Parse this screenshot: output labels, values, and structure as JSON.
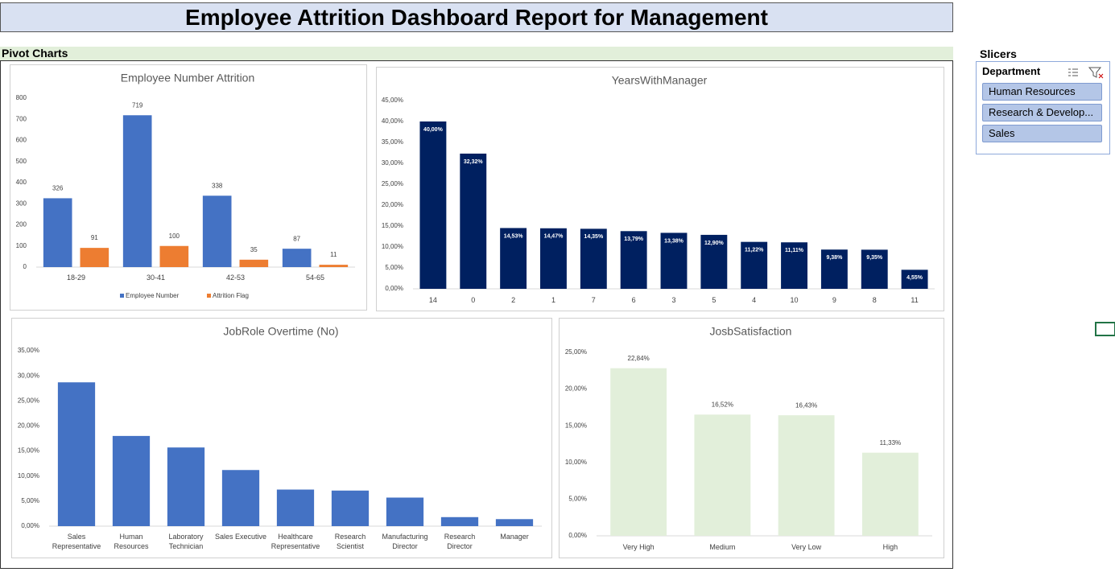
{
  "title": "Employee Attrition Dashboard Report for Management",
  "section_label": "Pivot Charts",
  "slicers": {
    "title": "Slicers",
    "header": "Department",
    "items": [
      "Human Resources",
      "Research & Develop...",
      "Sales"
    ]
  },
  "chart_data": [
    {
      "type": "bar",
      "title": "Employee Number Attrition",
      "categories": [
        "18-29",
        "30-41",
        "42-53",
        "54-65"
      ],
      "series": [
        {
          "name": "Employee Number",
          "color": "#4472c4",
          "values": [
            326,
            719,
            338,
            87
          ]
        },
        {
          "name": "Attrition Flag",
          "color": "#ed7d31",
          "values": [
            91,
            100,
            35,
            11
          ]
        }
      ],
      "ylim": [
        0,
        800
      ],
      "yticks": [
        0,
        100,
        200,
        300,
        400,
        500,
        600,
        700,
        800
      ],
      "grid": false,
      "legend": "bottom",
      "data_labels": "outside"
    },
    {
      "type": "bar",
      "title": "YearsWithManager",
      "categories": [
        "14",
        "0",
        "2",
        "1",
        "7",
        "6",
        "3",
        "5",
        "4",
        "10",
        "9",
        "8",
        "11"
      ],
      "values": [
        40.0,
        32.32,
        14.53,
        14.47,
        14.35,
        13.79,
        13.38,
        12.9,
        11.22,
        11.11,
        9.38,
        9.35,
        4.55
      ],
      "value_labels": [
        "40,00%",
        "32,32%",
        "14,53%",
        "14,47%",
        "14,35%",
        "13,79%",
        "13,38%",
        "12,90%",
        "11,22%",
        "11,11%",
        "9,38%",
        "9,35%",
        "4,55%"
      ],
      "color": "#002060",
      "ylim": [
        0,
        45
      ],
      "yticks": [
        {
          "value": 0,
          "label": "0,00%"
        },
        {
          "value": 5,
          "label": "5,00%"
        },
        {
          "value": 10,
          "label": "10,00%"
        },
        {
          "value": 15,
          "label": "15,00%"
        },
        {
          "value": 20,
          "label": "20,00%"
        },
        {
          "value": 25,
          "label": "25,00%"
        },
        {
          "value": 30,
          "label": "30,00%"
        },
        {
          "value": 35,
          "label": "35,00%"
        },
        {
          "value": 40,
          "label": "40,00%"
        },
        {
          "value": 45,
          "label": "45,00%"
        }
      ],
      "grid": false,
      "data_labels": "inside"
    },
    {
      "type": "bar",
      "title": "JobRole Overtime (No)",
      "categories": [
        "Sales Representative",
        "Human Resources",
        "Laboratory Technician",
        "Sales Executive",
        "Healthcare Representative",
        "Research Scientist",
        "Manufacturing Director",
        "Research Director",
        "Manager"
      ],
      "values": [
        28.7,
        18.0,
        15.7,
        11.2,
        7.3,
        7.1,
        5.7,
        1.8,
        1.4
      ],
      "color": "#4472c4",
      "ylim": [
        0,
        35
      ],
      "yticks": [
        {
          "value": 0,
          "label": "0,00%"
        },
        {
          "value": 5,
          "label": "5,00%"
        },
        {
          "value": 10,
          "label": "10,00%"
        },
        {
          "value": 15,
          "label": "15,00%"
        },
        {
          "value": 20,
          "label": "20,00%"
        },
        {
          "value": 25,
          "label": "25,00%"
        },
        {
          "value": 30,
          "label": "30,00%"
        },
        {
          "value": 35,
          "label": "35,00%"
        }
      ],
      "grid": false
    },
    {
      "type": "bar",
      "title": "JosbSatisfaction",
      "categories": [
        "Very High",
        "Medium",
        "Very Low",
        "High"
      ],
      "values": [
        22.84,
        16.52,
        16.43,
        11.33
      ],
      "value_labels": [
        "22,84%",
        "16,52%",
        "16,43%",
        "11,33%"
      ],
      "color": "#e2efda",
      "ylim": [
        0,
        25
      ],
      "yticks": [
        {
          "value": 0,
          "label": "0,00%"
        },
        {
          "value": 5,
          "label": "5,00%"
        },
        {
          "value": 10,
          "label": "10,00%"
        },
        {
          "value": 15,
          "label": "15,00%"
        },
        {
          "value": 20,
          "label": "20,00%"
        },
        {
          "value": 25,
          "label": "25,00%"
        }
      ],
      "grid": false,
      "data_labels": "outside"
    }
  ]
}
